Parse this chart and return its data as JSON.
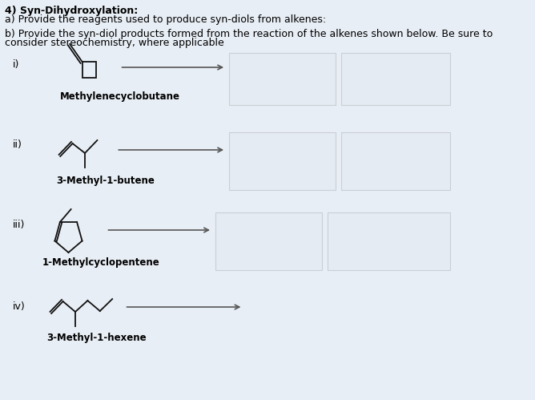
{
  "title_bold": "4) Syn-Dihydroxylation:",
  "line_a": "a) Provide the reagents used to produce syn-diols from alkenes:",
  "line_b1": "b) Provide the syn-diol products formed from the reaction of the alkenes shown below. Be sure to",
  "line_b2": "consider stereochemistry, where applicable",
  "bg_color": "#e8eef5",
  "text_color": "#000000",
  "items": [
    {
      "label": "i)",
      "name": "Methylenecyclobutane"
    },
    {
      "label": "ii)",
      "name": "3-Methyl-1-butene"
    },
    {
      "label": "iii)",
      "name": "1-Methylcyclopentene"
    },
    {
      "label": "iv)",
      "name": "3-Methyl-1-hexene"
    }
  ],
  "arrow_color": "#555555",
  "box_edge_color": "#999999",
  "box_face_color": "#dde8f0"
}
